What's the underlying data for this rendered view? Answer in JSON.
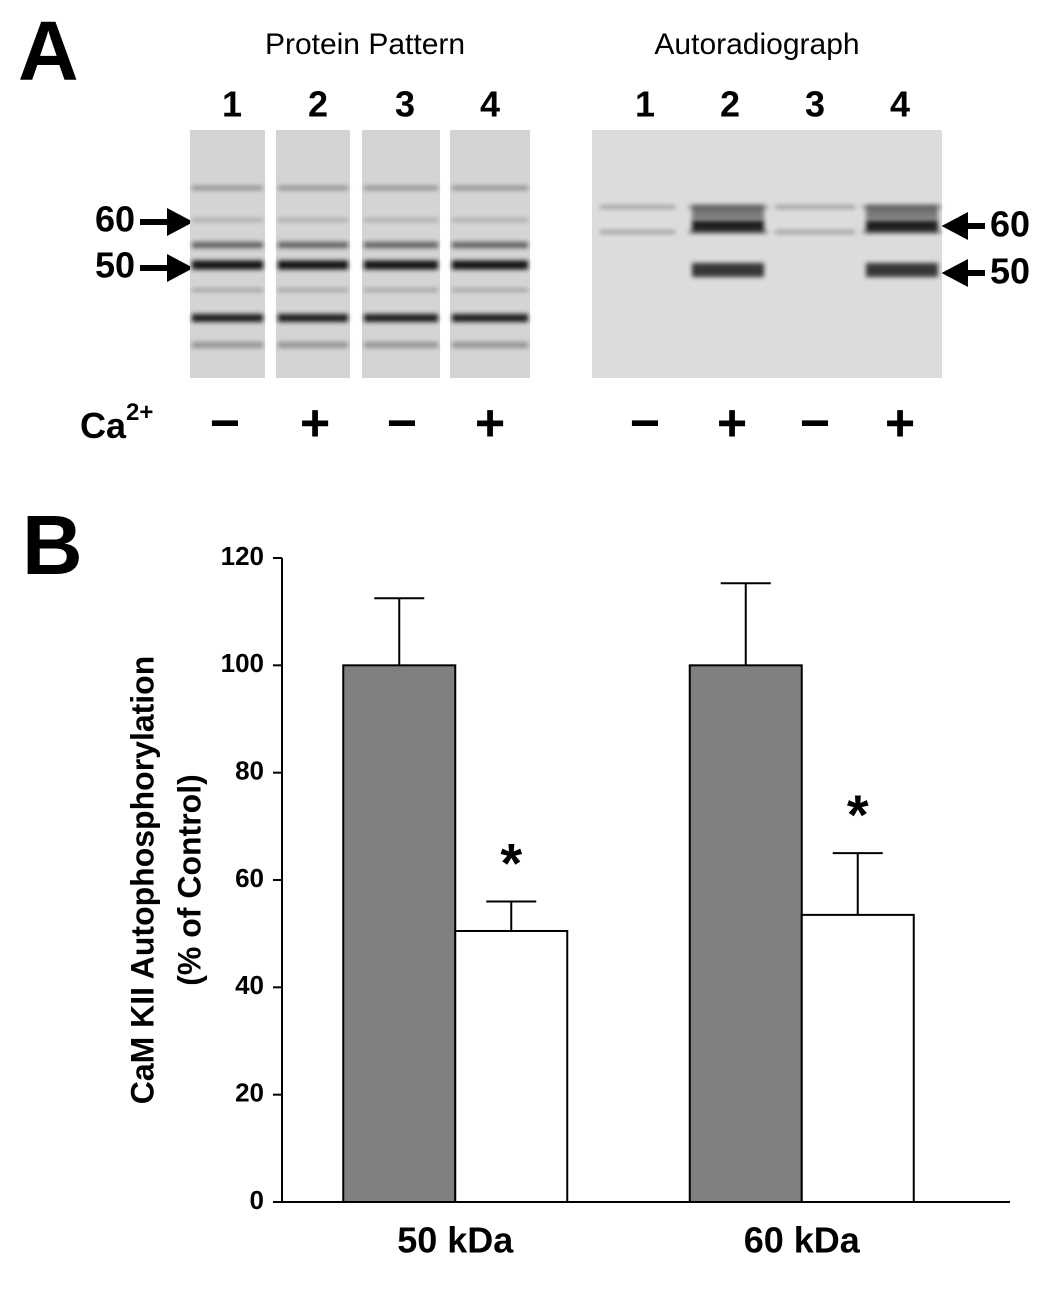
{
  "panel_a": {
    "label": "A",
    "gels": [
      {
        "title": "Protein Pattern",
        "lanes": [
          "1",
          "2",
          "3",
          "4"
        ],
        "markers": [
          "60",
          "50"
        ],
        "signs": [
          "−",
          "+",
          "−",
          "+"
        ]
      },
      {
        "title": "Autoradiograph",
        "lanes": [
          "1",
          "2",
          "3",
          "4"
        ],
        "markers": [
          "60",
          "50"
        ],
        "signs": [
          "−",
          "+",
          "−",
          "+"
        ]
      }
    ],
    "calcium": {
      "base": "Ca",
      "sup": "2+"
    }
  },
  "chart_data": {
    "type": "bar",
    "panel_label": "B",
    "ylabel": [
      "CaM KII Autophosphorylation",
      "(% of Control)"
    ],
    "categories": [
      "50 kDa",
      "60 kDa"
    ],
    "series": [
      {
        "color": "#808080",
        "values": [
          100,
          100
        ],
        "errors": [
          12.5,
          15.3
        ]
      },
      {
        "color": "#ffffff",
        "values": [
          50.5,
          53.5
        ],
        "errors": [
          5.5,
          11.5
        ]
      }
    ],
    "annotations": [
      "*",
      "*"
    ],
    "ylim": [
      0,
      120
    ],
    "yticks": [
      0,
      20,
      40,
      60,
      80,
      100,
      120
    ],
    "grid": false
  }
}
